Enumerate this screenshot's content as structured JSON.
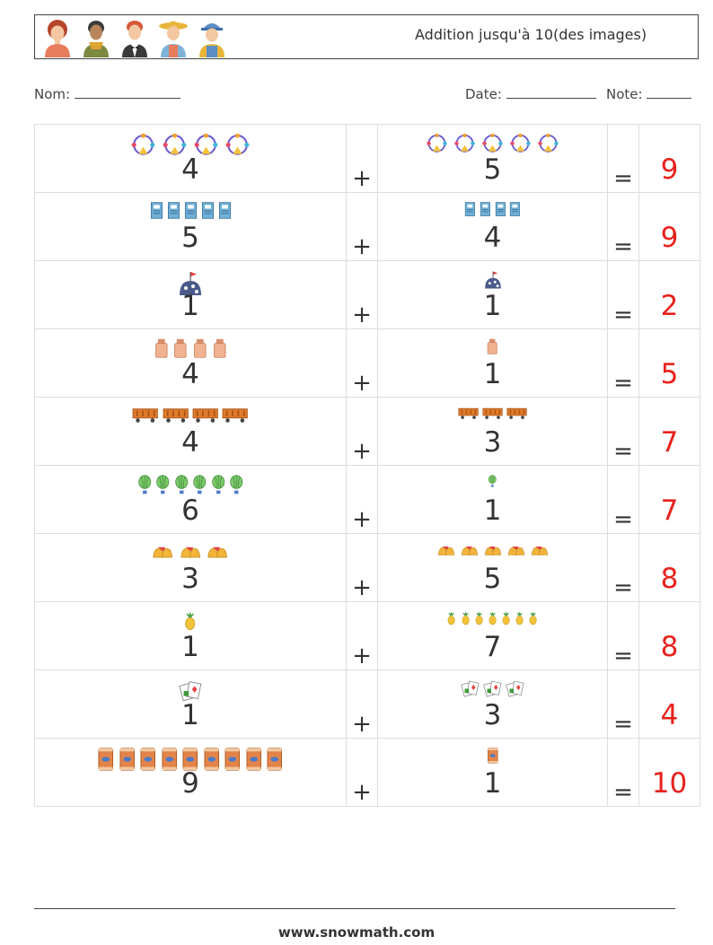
{
  "title": "Addition jusqu'à 10(des images)",
  "labels": {
    "name": "Nom:",
    "date": "Date:",
    "note": "Note:"
  },
  "footer": "www.snowmath.com",
  "colors": {
    "answer": "#e8211c",
    "text": "#333333",
    "grid": "#dddddd"
  },
  "avatars": [
    "woman-red-hair-icon",
    "man-scarf-icon",
    "waiter-icon",
    "farmer-woman-icon",
    "worker-cap-icon"
  ],
  "rows": [
    {
      "left": "4",
      "right": "5",
      "answer": "9",
      "left_icon": "ferris-wheel-icon",
      "right_icon": "ferris-wheel-icon",
      "plus": "+",
      "eq": "="
    },
    {
      "left": "5",
      "right": "4",
      "answer": "9",
      "left_icon": "book-icon",
      "right_icon": "book-icon",
      "plus": "+",
      "eq": "="
    },
    {
      "left": "1",
      "right": "1",
      "answer": "2",
      "left_icon": "dome-flag-icon",
      "right_icon": "dome-flag-icon",
      "plus": "+",
      "eq": "="
    },
    {
      "left": "4",
      "right": "1",
      "answer": "5",
      "left_icon": "jar-icon",
      "right_icon": "jar-icon",
      "plus": "+",
      "eq": "="
    },
    {
      "left": "4",
      "right": "3",
      "answer": "7",
      "left_icon": "freight-car-icon",
      "right_icon": "freight-car-icon",
      "plus": "+",
      "eq": "="
    },
    {
      "left": "6",
      "right": "1",
      "answer": "7",
      "left_icon": "hot-air-balloon-icon",
      "right_icon": "hot-air-balloon-icon",
      "plus": "+",
      "eq": "="
    },
    {
      "left": "3",
      "right": "5",
      "answer": "8",
      "left_icon": "bells-icon",
      "right_icon": "bells-icon",
      "plus": "+",
      "eq": "="
    },
    {
      "left": "1",
      "right": "7",
      "answer": "8",
      "left_icon": "pineapple-icon",
      "right_icon": "pineapple-icon",
      "plus": "+",
      "eq": "="
    },
    {
      "left": "1",
      "right": "3",
      "answer": "4",
      "left_icon": "playing-cards-icon",
      "right_icon": "playing-cards-icon",
      "plus": "+",
      "eq": "="
    },
    {
      "left": "9",
      "right": "1",
      "answer": "10",
      "left_icon": "snack-bag-icon",
      "right_icon": "snack-bag-icon",
      "plus": "+",
      "eq": "="
    }
  ]
}
